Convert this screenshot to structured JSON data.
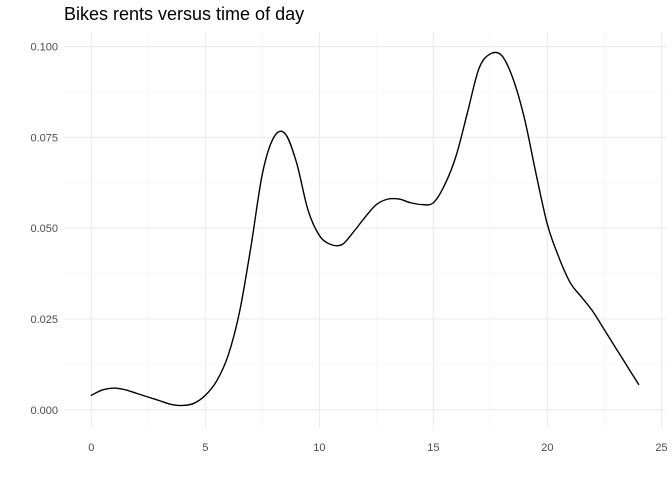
{
  "chart_data": {
    "type": "line",
    "title": "Bikes rents versus time of day",
    "xlabel": "",
    "ylabel": "",
    "xlim": [
      -1.2,
      25.2
    ],
    "ylim": [
      -0.005,
      0.104
    ],
    "x_ticks": [
      "0",
      "5",
      "10",
      "15",
      "20",
      "25"
    ],
    "y_ticks": [
      "0.000",
      "0.025",
      "0.050",
      "0.075",
      "0.100"
    ],
    "grid": true,
    "legend": "none",
    "colors": {
      "line": "#000000",
      "grid_major": "#ebebeb",
      "grid_minor": "#f5f5f5",
      "tick_text": "#4d4d4d"
    },
    "series": [
      {
        "x": [
          0,
          0.5,
          1,
          1.5,
          2,
          2.5,
          3,
          3.5,
          4,
          4.5,
          5,
          5.5,
          6,
          6.5,
          7,
          7.5,
          8,
          8.5,
          9,
          9.5,
          10,
          10.5,
          11,
          11.5,
          12,
          12.5,
          13,
          13.5,
          14,
          14.5,
          15,
          15.5,
          16,
          16.5,
          17,
          17.5,
          18,
          18.5,
          19,
          19.5,
          20,
          20.5,
          21,
          21.5,
          22,
          22.5,
          23,
          23.5,
          24
        ],
        "y": [
          0.004,
          0.0055,
          0.006,
          0.0055,
          0.0045,
          0.0035,
          0.0025,
          0.0015,
          0.0012,
          0.0018,
          0.004,
          0.008,
          0.015,
          0.027,
          0.045,
          0.065,
          0.075,
          0.076,
          0.068,
          0.055,
          0.048,
          0.0455,
          0.0455,
          0.049,
          0.053,
          0.0565,
          0.058,
          0.058,
          0.057,
          0.0565,
          0.057,
          0.062,
          0.07,
          0.082,
          0.094,
          0.098,
          0.0975,
          0.091,
          0.08,
          0.065,
          0.051,
          0.042,
          0.035,
          0.031,
          0.027,
          0.022,
          0.017,
          0.012,
          0.007
        ]
      }
    ]
  }
}
